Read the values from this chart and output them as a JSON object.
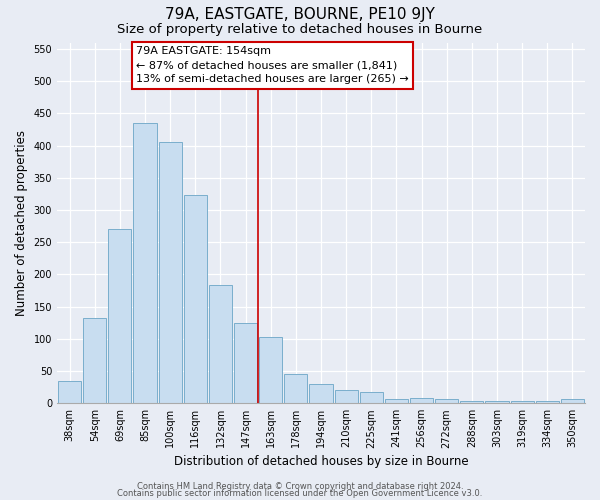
{
  "title": "79A, EASTGATE, BOURNE, PE10 9JY",
  "subtitle": "Size of property relative to detached houses in Bourne",
  "xlabel": "Distribution of detached houses by size in Bourne",
  "ylabel": "Number of detached properties",
  "bar_color": "#c8ddf0",
  "bar_edge_color": "#7aaecc",
  "categories": [
    "38sqm",
    "54sqm",
    "69sqm",
    "85sqm",
    "100sqm",
    "116sqm",
    "132sqm",
    "147sqm",
    "163sqm",
    "178sqm",
    "194sqm",
    "210sqm",
    "225sqm",
    "241sqm",
    "256sqm",
    "272sqm",
    "288sqm",
    "303sqm",
    "319sqm",
    "334sqm",
    "350sqm"
  ],
  "values": [
    35,
    133,
    270,
    435,
    405,
    323,
    183,
    125,
    102,
    45,
    30,
    20,
    18,
    7,
    8,
    6,
    4,
    4,
    3,
    3,
    6
  ],
  "vline_x": 7.5,
  "vline_color": "#cc0000",
  "annotation_title": "79A EASTGATE: 154sqm",
  "annotation_line1": "← 87% of detached houses are smaller (1,841)",
  "annotation_line2": "13% of semi-detached houses are larger (265) →",
  "ylim": [
    0,
    560
  ],
  "yticks": [
    0,
    50,
    100,
    150,
    200,
    250,
    300,
    350,
    400,
    450,
    500,
    550
  ],
  "footer_line1": "Contains HM Land Registry data © Crown copyright and database right 2024.",
  "footer_line2": "Contains public sector information licensed under the Open Government Licence v3.0.",
  "background_color": "#e8ecf4",
  "plot_background": "#e8ecf4",
  "grid_color": "#ffffff",
  "title_fontsize": 11,
  "subtitle_fontsize": 9.5,
  "axis_label_fontsize": 8.5,
  "tick_fontsize": 7,
  "footer_fontsize": 6,
  "annotation_fontsize": 8
}
